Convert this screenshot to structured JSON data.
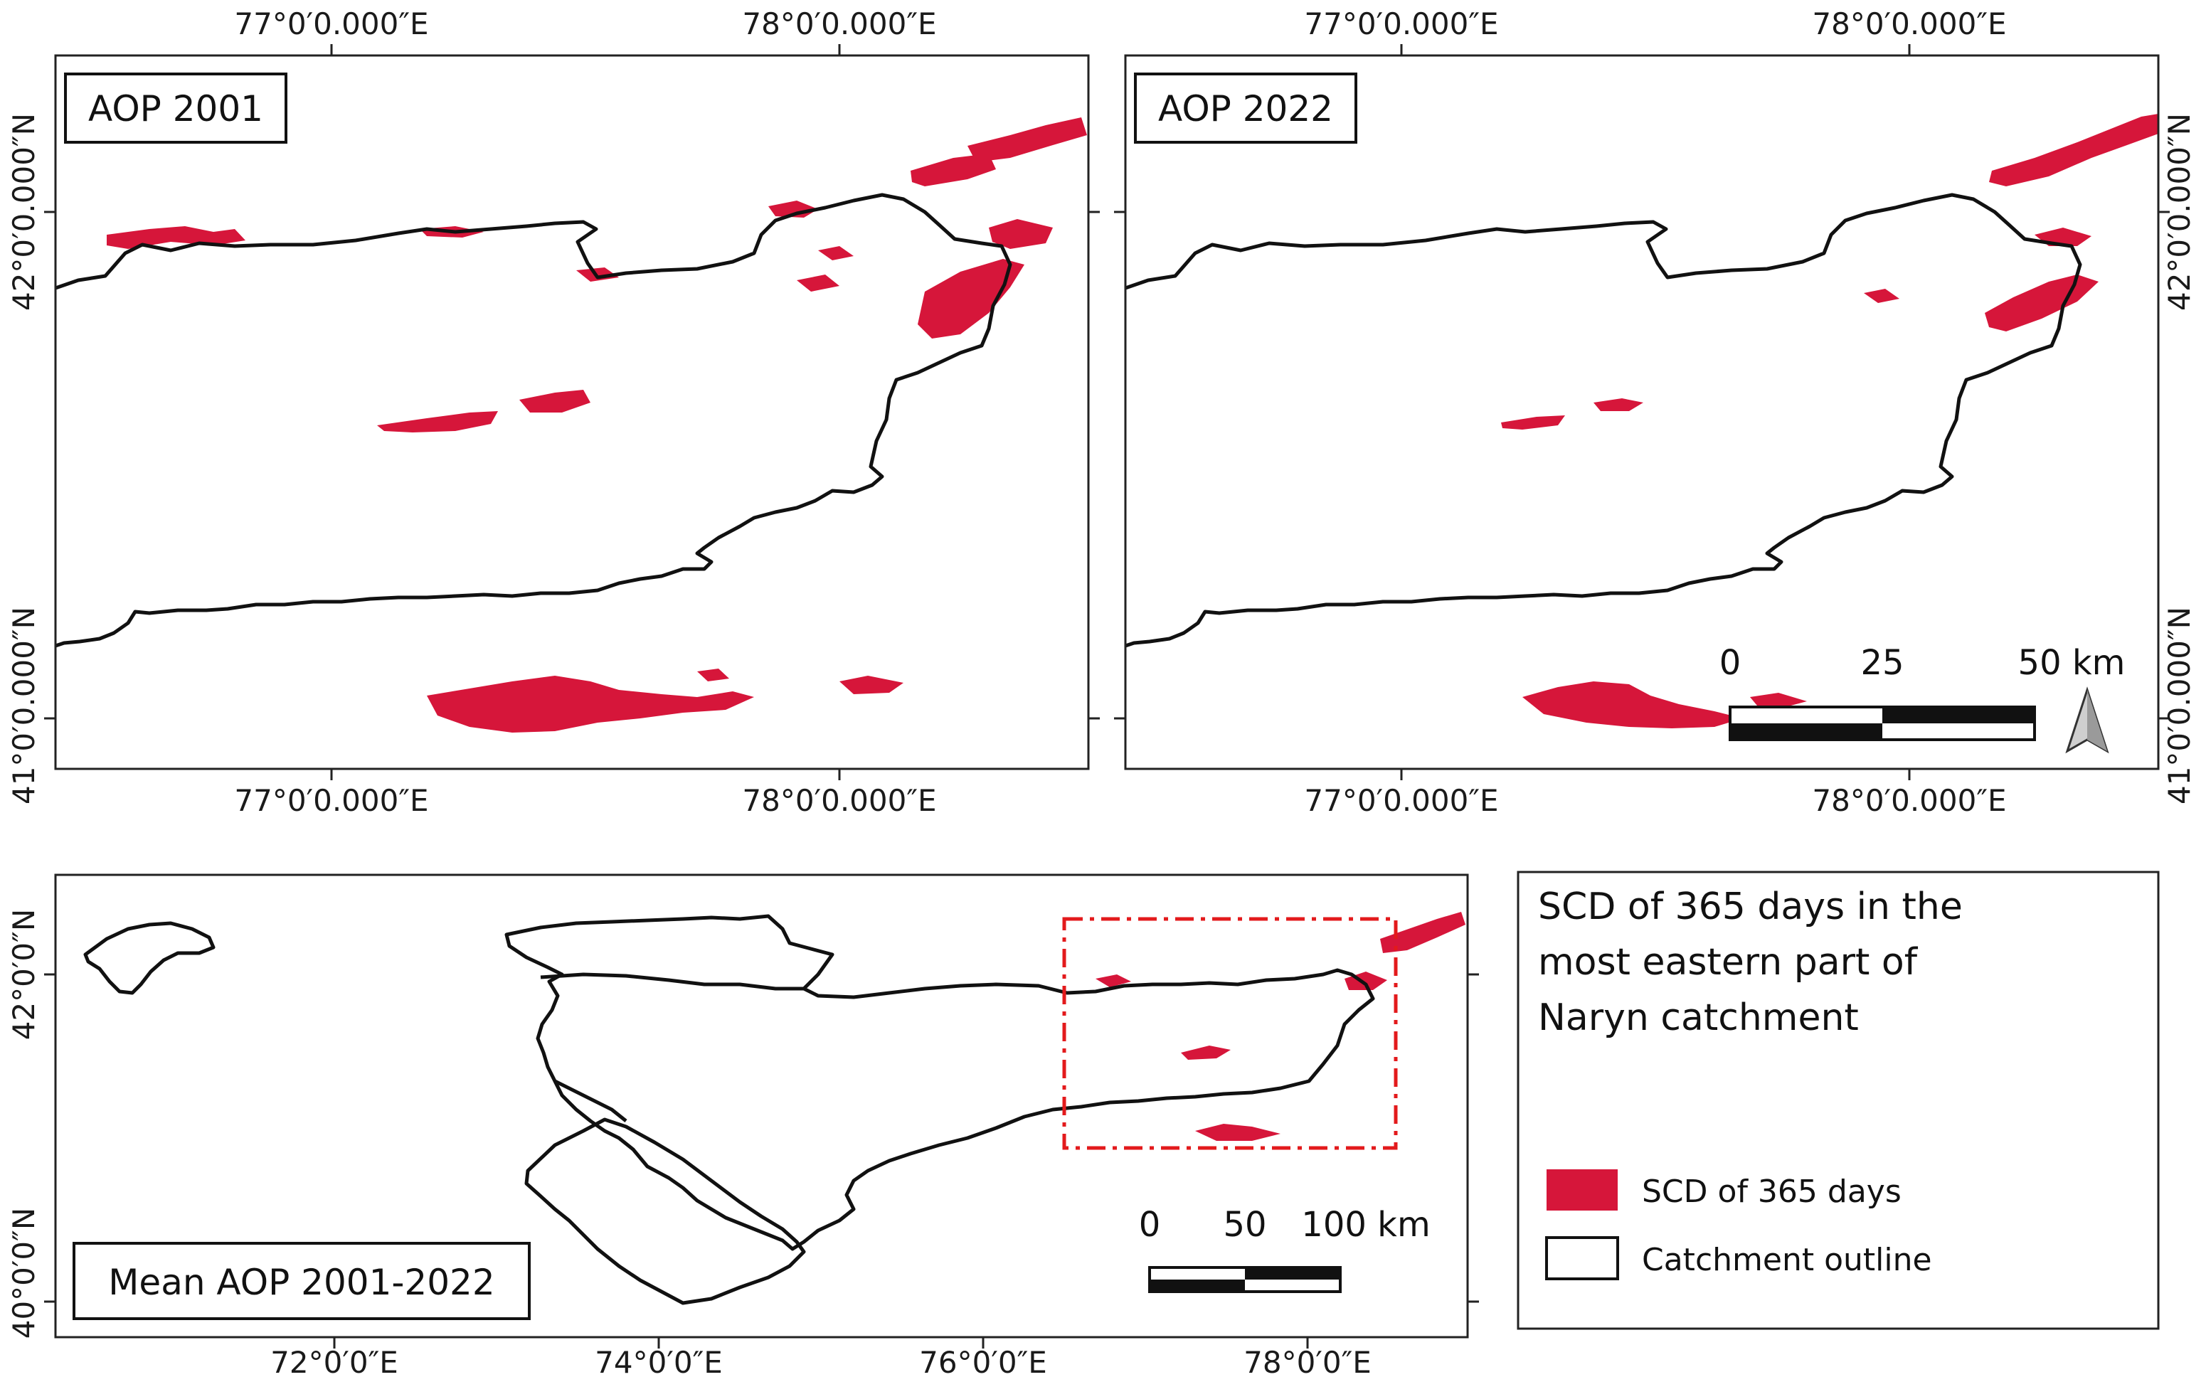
{
  "panels": {
    "aop2001": {
      "title": "AOP 2001",
      "lon_top": [
        "77°0′0.000″E",
        "78°0′0.000″E"
      ],
      "lon_bottom": [
        "77°0′0.000″E",
        "78°0′0.000″E"
      ],
      "lat_left": [
        "42°0′0.000″N",
        "41°0′0.000″N"
      ]
    },
    "aop2022": {
      "title": "AOP 2022",
      "lon_top": [
        "77°0′0.000″E",
        "78°0′0.000″E"
      ],
      "lon_bottom": [
        "77°0′0.000″E",
        "78°0′0.000″E"
      ],
      "lat_right": [
        "42°0′0.000″N",
        "41°0′0.000″N"
      ],
      "scalebar": {
        "labels": [
          "0",
          "25",
          "50 km"
        ]
      }
    },
    "mean": {
      "title": "Mean AOP 2001-2022",
      "lon_bottom": [
        "72°0′0″E",
        "74°0′0″E",
        "76°0′0″E",
        "78°0′0″E"
      ],
      "lat_left": [
        "42°0′0″N",
        "40°0′0″N"
      ],
      "scalebar": {
        "labels": [
          "0",
          "50",
          "100 km"
        ]
      }
    }
  },
  "legend": {
    "title_lines": [
      "SCD of 365 days in the",
      "most eastern part of",
      "Naryn catchment"
    ],
    "items": [
      {
        "label": "SCD of 365 days",
        "swatch": "#d6163a"
      },
      {
        "label": "Catchment outline",
        "swatch": "#ffffff"
      }
    ]
  },
  "colors": {
    "snow": "#d6163a",
    "outline": "#111111",
    "extent_box": "#e31a1c"
  }
}
